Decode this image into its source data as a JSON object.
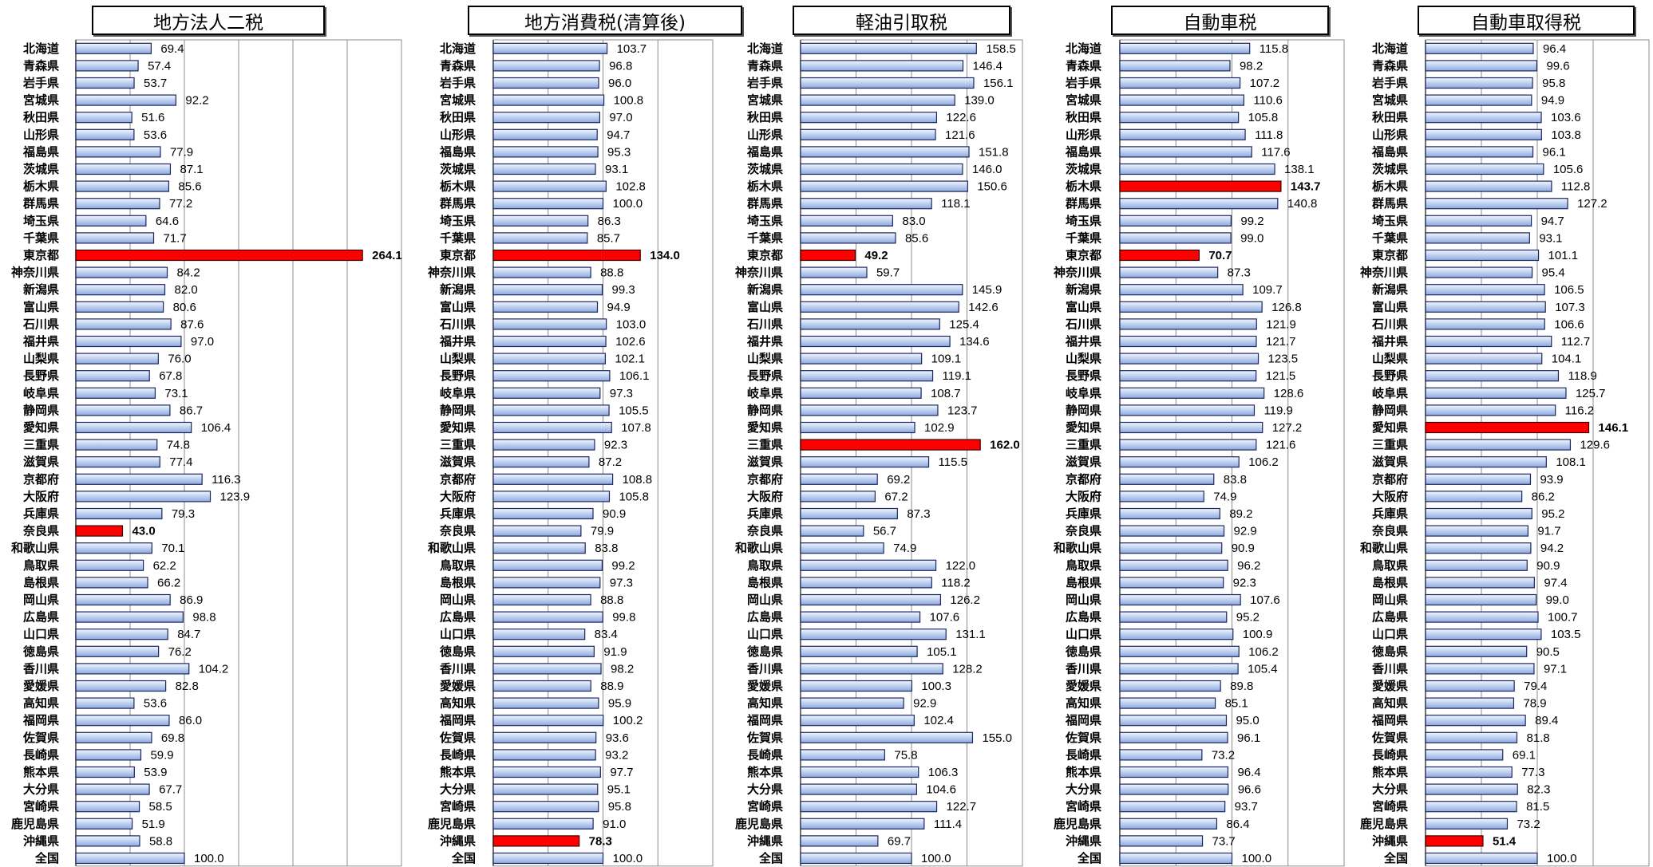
{
  "colors": {
    "bar_top": "#f3f7fd",
    "bar_mid": "#bdd0f0",
    "bar_bottom": "#8fa9dc",
    "bar_border": "#1c2660",
    "highlight": "#ff0000",
    "highlight_border": "#3a0000",
    "grid": "#8c8c8c",
    "axis": "#404040"
  },
  "chart_data": [
    {
      "type": "bar",
      "orientation": "horizontal",
      "title": "地方法人二税",
      "xlim": [
        0,
        300
      ],
      "grid": true,
      "grid_step": 50,
      "highlight": [
        12,
        28
      ],
      "categories": [
        "北海道",
        "青森県",
        "岩手県",
        "宮城県",
        "秋田県",
        "山形県",
        "福島県",
        "茨城県",
        "栃木県",
        "群馬県",
        "埼玉県",
        "千葉県",
        "東京都",
        "神奈川県",
        "新潟県",
        "富山県",
        "石川県",
        "福井県",
        "山梨県",
        "長野県",
        "岐阜県",
        "静岡県",
        "愛知県",
        "三重県",
        "滋賀県",
        "京都府",
        "大阪府",
        "兵庫県",
        "奈良県",
        "和歌山県",
        "鳥取県",
        "島根県",
        "岡山県",
        "広島県",
        "山口県",
        "徳島県",
        "香川県",
        "愛媛県",
        "高知県",
        "福岡県",
        "佐賀県",
        "長崎県",
        "熊本県",
        "大分県",
        "宮崎県",
        "鹿児島県",
        "沖縄県",
        "全国"
      ],
      "values": [
        69.4,
        57.4,
        53.7,
        92.2,
        51.6,
        53.6,
        77.9,
        87.1,
        85.6,
        77.2,
        64.6,
        71.7,
        264.1,
        84.2,
        82.0,
        80.6,
        87.6,
        97.0,
        76.0,
        67.8,
        73.1,
        86.7,
        106.4,
        74.8,
        77.4,
        116.3,
        123.9,
        79.3,
        43.0,
        70.1,
        62.2,
        66.2,
        86.9,
        98.8,
        84.7,
        76.2,
        104.2,
        82.8,
        53.6,
        86.0,
        69.8,
        59.9,
        53.9,
        67.7,
        58.5,
        51.9,
        58.8,
        100.0
      ]
    },
    {
      "type": "bar",
      "orientation": "horizontal",
      "title": "地方消費税(清算後)",
      "xlim": [
        0,
        200
      ],
      "grid": true,
      "grid_step": 50,
      "highlight": [
        12,
        46
      ],
      "categories": [
        "北海道",
        "青森県",
        "岩手県",
        "宮城県",
        "秋田県",
        "山形県",
        "福島県",
        "茨城県",
        "栃木県",
        "群馬県",
        "埼玉県",
        "千葉県",
        "東京都",
        "神奈川県",
        "新潟県",
        "富山県",
        "石川県",
        "福井県",
        "山梨県",
        "長野県",
        "岐阜県",
        "静岡県",
        "愛知県",
        "三重県",
        "滋賀県",
        "京都府",
        "大阪府",
        "兵庫県",
        "奈良県",
        "和歌山県",
        "鳥取県",
        "島根県",
        "岡山県",
        "広島県",
        "山口県",
        "徳島県",
        "香川県",
        "愛媛県",
        "高知県",
        "福岡県",
        "佐賀県",
        "長崎県",
        "熊本県",
        "大分県",
        "宮崎県",
        "鹿児島県",
        "沖縄県",
        "全国"
      ],
      "values": [
        103.7,
        96.8,
        96.0,
        100.8,
        97.0,
        94.7,
        95.3,
        93.1,
        102.8,
        100.0,
        86.3,
        85.7,
        134.0,
        88.8,
        99.3,
        94.9,
        103.0,
        102.6,
        102.1,
        106.1,
        97.3,
        105.5,
        107.8,
        92.3,
        87.2,
        108.8,
        105.8,
        90.9,
        79.9,
        83.8,
        99.2,
        97.3,
        88.8,
        99.8,
        83.4,
        91.9,
        98.2,
        88.9,
        95.9,
        100.2,
        93.6,
        93.2,
        97.7,
        95.1,
        95.8,
        91.0,
        78.3,
        100.0
      ]
    },
    {
      "type": "bar",
      "orientation": "horizontal",
      "title": "軽油引取税",
      "xlim": [
        0,
        200
      ],
      "grid": true,
      "grid_step": 50,
      "highlight": [
        12,
        23
      ],
      "categories": [
        "北海道",
        "青森県",
        "岩手県",
        "宮城県",
        "秋田県",
        "山形県",
        "福島県",
        "茨城県",
        "栃木県",
        "群馬県",
        "埼玉県",
        "千葉県",
        "東京都",
        "神奈川県",
        "新潟県",
        "富山県",
        "石川県",
        "福井県",
        "山梨県",
        "長野県",
        "岐阜県",
        "静岡県",
        "愛知県",
        "三重県",
        "滋賀県",
        "京都府",
        "大阪府",
        "兵庫県",
        "奈良県",
        "和歌山県",
        "鳥取県",
        "島根県",
        "岡山県",
        "広島県",
        "山口県",
        "徳島県",
        "香川県",
        "愛媛県",
        "高知県",
        "福岡県",
        "佐賀県",
        "長崎県",
        "熊本県",
        "大分県",
        "宮崎県",
        "鹿児島県",
        "沖縄県",
        "全国"
      ],
      "values": [
        158.5,
        146.4,
        156.1,
        139.0,
        122.6,
        121.6,
        151.8,
        146.0,
        150.6,
        118.1,
        83.0,
        85.6,
        49.2,
        59.7,
        145.9,
        142.6,
        125.4,
        134.6,
        109.1,
        119.1,
        108.7,
        123.7,
        102.9,
        162.0,
        115.5,
        69.2,
        67.2,
        87.3,
        56.7,
        74.9,
        122.0,
        118.2,
        126.2,
        107.6,
        131.1,
        105.1,
        128.2,
        100.3,
        92.9,
        102.4,
        155.0,
        75.8,
        106.3,
        104.6,
        122.7,
        111.4,
        69.7,
        100.0
      ]
    },
    {
      "type": "bar",
      "orientation": "horizontal",
      "title": "自動車税",
      "xlim": [
        0,
        200
      ],
      "grid": true,
      "grid_step": 50,
      "highlight": [
        8,
        12
      ],
      "categories": [
        "北海道",
        "青森県",
        "岩手県",
        "宮城県",
        "秋田県",
        "山形県",
        "福島県",
        "茨城県",
        "栃木県",
        "群馬県",
        "埼玉県",
        "千葉県",
        "東京都",
        "神奈川県",
        "新潟県",
        "富山県",
        "石川県",
        "福井県",
        "山梨県",
        "長野県",
        "岐阜県",
        "静岡県",
        "愛知県",
        "三重県",
        "滋賀県",
        "京都府",
        "大阪府",
        "兵庫県",
        "奈良県",
        "和歌山県",
        "鳥取県",
        "島根県",
        "岡山県",
        "広島県",
        "山口県",
        "徳島県",
        "香川県",
        "愛媛県",
        "高知県",
        "福岡県",
        "佐賀県",
        "長崎県",
        "熊本県",
        "大分県",
        "宮崎県",
        "鹿児島県",
        "沖縄県",
        "全国"
      ],
      "values": [
        115.8,
        98.2,
        107.2,
        110.6,
        105.8,
        111.8,
        117.6,
        138.1,
        143.7,
        140.8,
        99.2,
        99.0,
        70.7,
        87.3,
        109.7,
        126.8,
        121.9,
        121.7,
        123.5,
        121.5,
        128.6,
        119.9,
        127.2,
        121.6,
        106.2,
        83.8,
        74.9,
        89.2,
        92.9,
        90.9,
        96.2,
        92.3,
        107.6,
        95.2,
        100.9,
        106.2,
        105.4,
        89.8,
        85.1,
        95.0,
        96.1,
        73.2,
        96.4,
        96.6,
        93.7,
        86.4,
        73.7,
        100.0
      ]
    },
    {
      "type": "bar",
      "orientation": "horizontal",
      "title": "自動車取得税",
      "xlim": [
        0,
        200
      ],
      "grid": true,
      "grid_step": 50,
      "highlight": [
        22,
        46
      ],
      "categories": [
        "北海道",
        "青森県",
        "岩手県",
        "宮城県",
        "秋田県",
        "山形県",
        "福島県",
        "茨城県",
        "栃木県",
        "群馬県",
        "埼玉県",
        "千葉県",
        "東京都",
        "神奈川県",
        "新潟県",
        "富山県",
        "石川県",
        "福井県",
        "山梨県",
        "長野県",
        "岐阜県",
        "静岡県",
        "愛知県",
        "三重県",
        "滋賀県",
        "京都府",
        "大阪府",
        "兵庫県",
        "奈良県",
        "和歌山県",
        "鳥取県",
        "島根県",
        "岡山県",
        "広島県",
        "山口県",
        "徳島県",
        "香川県",
        "愛媛県",
        "高知県",
        "福岡県",
        "佐賀県",
        "長崎県",
        "熊本県",
        "大分県",
        "宮崎県",
        "鹿児島県",
        "沖縄県",
        "全国"
      ],
      "values": [
        96.4,
        99.6,
        95.8,
        94.9,
        103.6,
        103.8,
        96.1,
        105.6,
        112.8,
        127.2,
        94.7,
        93.1,
        101.1,
        95.4,
        106.5,
        107.3,
        106.6,
        112.7,
        104.1,
        118.9,
        125.7,
        116.2,
        146.1,
        129.6,
        108.1,
        93.9,
        86.2,
        95.2,
        91.7,
        94.2,
        90.9,
        97.4,
        99.0,
        100.7,
        103.5,
        90.5,
        97.1,
        79.4,
        78.9,
        89.4,
        81.8,
        69.1,
        77.3,
        82.3,
        81.5,
        73.2,
        51.4,
        100.0
      ]
    }
  ]
}
